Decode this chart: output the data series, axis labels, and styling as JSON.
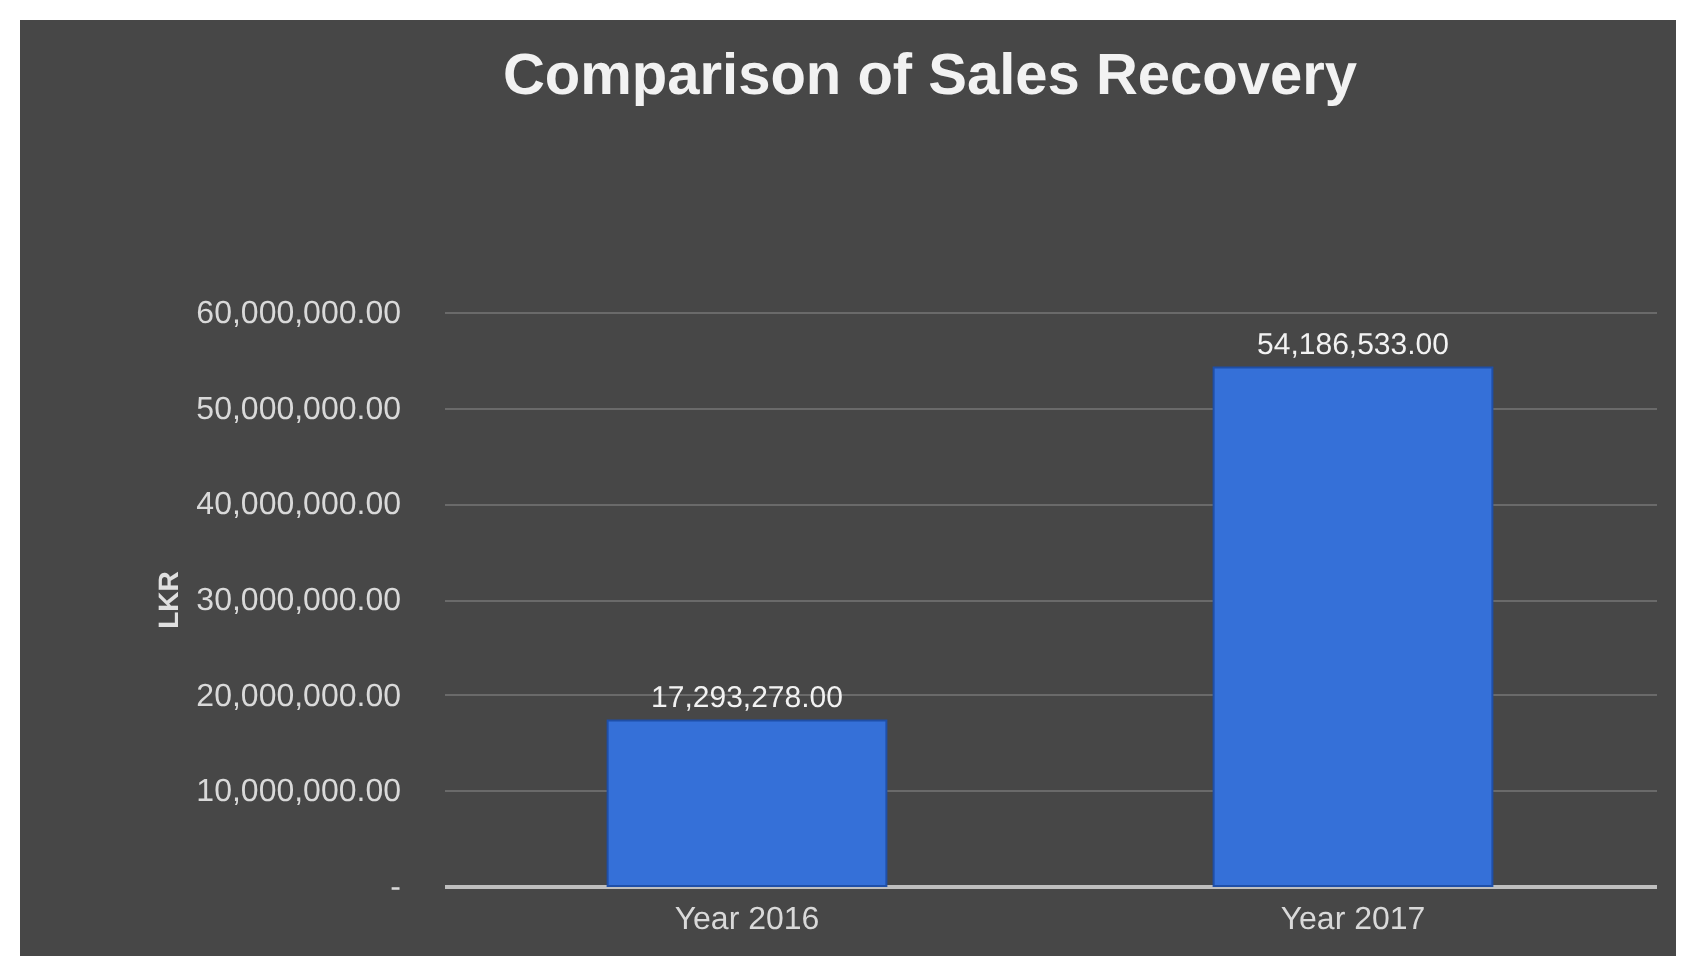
{
  "chart_data": {
    "type": "bar",
    "title": "Comparison of Sales Recovery",
    "ylabel": "LKR",
    "categories": [
      "Year 2016",
      "Year 2017"
    ],
    "values": [
      17293278,
      54186533
    ],
    "value_labels": [
      "17,293,278.00",
      "54,186,533.00"
    ],
    "color": "#3570d8",
    "ylim": [
      0,
      60000000
    ],
    "yticks": [
      {
        "value": 0,
        "label": "-"
      },
      {
        "value": 10000000,
        "label": "10,000,000.00"
      },
      {
        "value": 20000000,
        "label": "20,000,000.00"
      },
      {
        "value": 30000000,
        "label": "30,000,000.00"
      },
      {
        "value": 40000000,
        "label": "40,000,000.00"
      },
      {
        "value": 50000000,
        "label": "50,000,000.00"
      },
      {
        "value": 60000000,
        "label": "60,000,000.00"
      }
    ],
    "grid": "y"
  }
}
